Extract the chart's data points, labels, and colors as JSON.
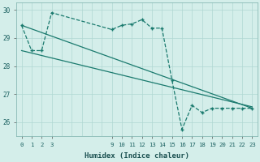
{
  "xlabel": "Humidex (Indice chaleur)",
  "background_color": "#d4eeea",
  "grid_color": "#b0d8d2",
  "line_color": "#1a7a6e",
  "xlim": [
    -0.5,
    23.5
  ],
  "ylim": [
    25.5,
    30.25
  ],
  "yticks": [
    26,
    27,
    28,
    29,
    30
  ],
  "xticks": [
    0,
    1,
    2,
    3,
    9,
    10,
    11,
    12,
    13,
    14,
    15,
    16,
    17,
    18,
    19,
    20,
    21,
    22,
    23
  ],
  "series1_x": [
    0,
    1,
    2,
    3,
    9,
    10,
    11,
    12,
    13,
    14,
    15,
    16,
    17,
    18,
    19,
    20,
    21,
    22,
    23
  ],
  "series1_y": [
    29.45,
    28.55,
    28.55,
    29.9,
    29.3,
    29.45,
    29.5,
    29.65,
    29.35,
    29.35,
    27.5,
    25.75,
    26.6,
    26.35,
    26.5,
    26.5,
    26.5,
    26.5,
    26.5
  ],
  "series2_x": [
    0,
    23
  ],
  "series2_y": [
    28.55,
    26.55
  ],
  "series3_x": [
    0,
    23
  ],
  "series3_y": [
    29.45,
    26.5
  ],
  "tick_fontsize": 5.2,
  "xlabel_fontsize": 6.5
}
